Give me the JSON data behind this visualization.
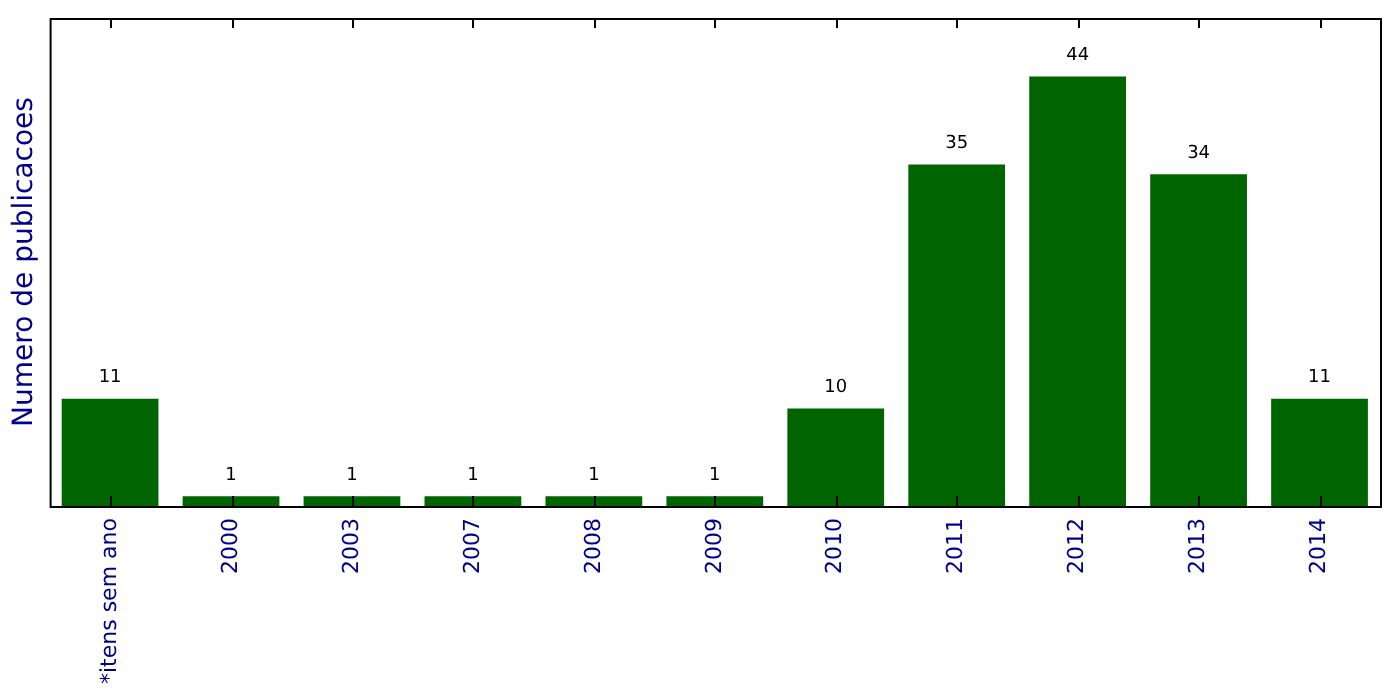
{
  "chart_data": {
    "type": "bar",
    "ylabel": "Numero de publicacoes",
    "categories": [
      "*itens sem ano",
      "2000",
      "2003",
      "2007",
      "2008",
      "2009",
      "2010",
      "2011",
      "2012",
      "2013",
      "2014"
    ],
    "values": [
      11,
      1,
      1,
      1,
      1,
      1,
      10,
      35,
      44,
      34,
      11
    ],
    "color": "#006400",
    "ylim": [
      0,
      50
    ],
    "tick_labels": "x",
    "data_labels": true,
    "grid": false,
    "legend": false
  }
}
